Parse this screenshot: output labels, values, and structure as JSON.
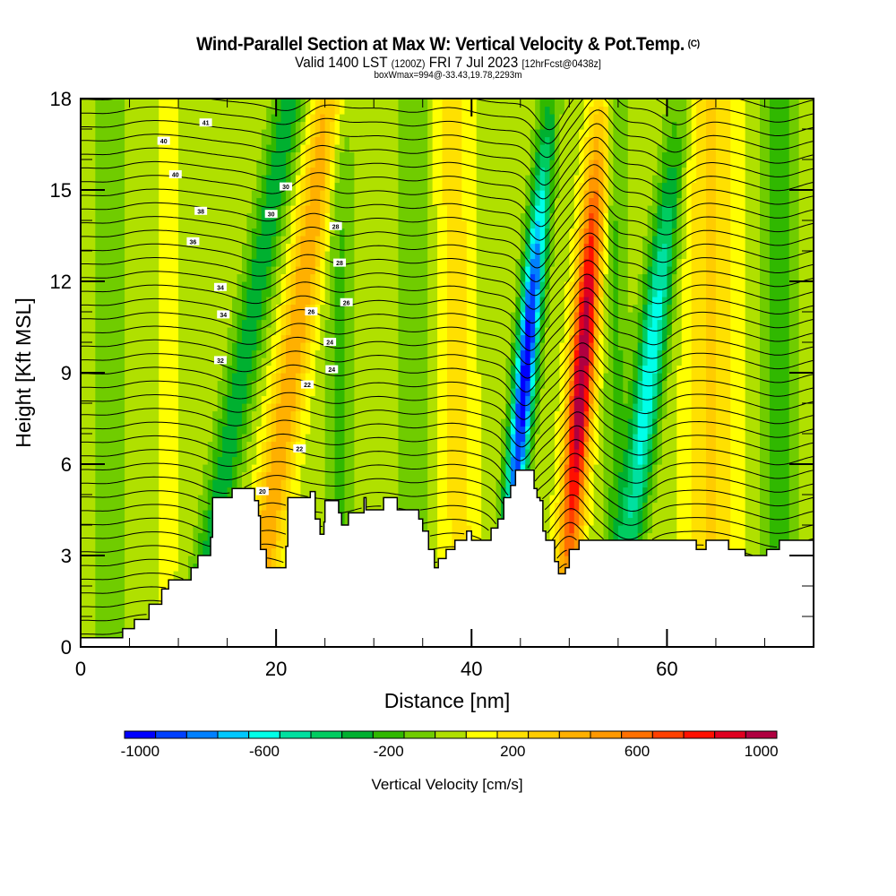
{
  "header": {
    "title": "Wind-Parallel Section at Max W: Vertical Velocity & Pot.Temp.",
    "copyright": "(C)",
    "valid_prefix": "Valid 1400 LST",
    "valid_utc": "(1200Z)",
    "valid_date": "FRI 7 Jul 2023",
    "forecast": "[12hrFcst@0438z]",
    "box_wmax": "boxWmax=994@-33.43,19.78,2293m"
  },
  "chart_data": {
    "type": "heatmap",
    "title": "Wind-Parallel Section at Max W: Vertical Velocity & Pot.Temp.",
    "xlabel": "Distance [nm]",
    "ylabel": "Height [Kft MSL]",
    "xlim": [
      0,
      75
    ],
    "ylim": [
      0,
      18
    ],
    "x_ticks": [
      "0",
      "20",
      "40",
      "60"
    ],
    "x_tick_values": [
      0,
      20,
      40,
      60
    ],
    "x_minor_step": 5,
    "y_ticks": [
      "0",
      "3",
      "6",
      "9",
      "12",
      "15",
      "18"
    ],
    "y_tick_values": [
      0,
      3,
      6,
      9,
      12,
      15,
      18
    ],
    "y_minor_step": 1,
    "colorbar": {
      "title": "Vertical Velocity [cm/s]",
      "tick_labels": [
        "-1000",
        "-600",
        "-200",
        "200",
        "600",
        "1000"
      ],
      "tick_values": [
        -1000,
        -600,
        -200,
        200,
        600,
        1000
      ],
      "levels": [
        -1000,
        -900,
        -800,
        -700,
        -600,
        -500,
        -400,
        -300,
        -200,
        -100,
        0,
        100,
        200,
        300,
        400,
        500,
        600,
        700,
        800,
        900,
        1000
      ],
      "colors": [
        "#0000ff",
        "#0040ff",
        "#0080ff",
        "#00c8ff",
        "#00ffe8",
        "#00e0a0",
        "#00cc60",
        "#00b030",
        "#30b800",
        "#70cc00",
        "#b0e000",
        "#ffff00",
        "#ffe000",
        "#ffcc00",
        "#ffb000",
        "#ff9800",
        "#ff7000",
        "#ff4000",
        "#ff1000",
        "#e00020",
        "#b00040"
      ]
    },
    "max_w": {
      "value_cm_s": 994,
      "lat": -33.43,
      "lon": 19.78,
      "height_m": 2293
    },
    "features": [
      {
        "name": "strong downdraft",
        "distance_nm": 46.5,
        "w_cm_s": -1000
      },
      {
        "name": "strong updraft",
        "distance_nm": 51.5,
        "w_cm_s": 994
      },
      {
        "name": "downdraft",
        "distance_nm": 58.5,
        "w_cm_s": -600
      },
      {
        "name": "updraft",
        "distance_nm": 21.5,
        "w_cm_s": 400
      },
      {
        "name": "downdraft",
        "distance_nm": 17.5,
        "w_cm_s": -400
      }
    ],
    "contour_variable": "Potential Temperature",
    "contour_labels": [
      "41",
      "40",
      "40",
      "38",
      "36",
      "34",
      "34",
      "32",
      "30",
      "30",
      "28",
      "28",
      "26",
      "26",
      "24",
      "24",
      "22",
      "22",
      "20"
    ]
  }
}
